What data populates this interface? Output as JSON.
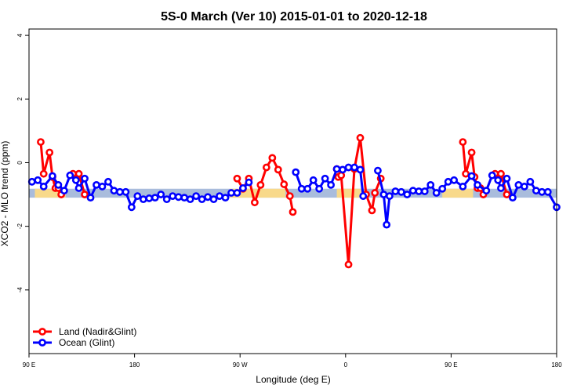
{
  "chart_data": {
    "type": "line",
    "title": "5S-0 March (Ver 10)   2015-01-01 to 2020-12-18",
    "xlabel": "Longitude (deg E)",
    "ylabel": "XCO2 - MLO trend (ppm)",
    "xlim": [
      90,
      450
    ],
    "ylim": [
      -6,
      4.2
    ],
    "x_ticks": [
      {
        "value": 90,
        "label": "90 E"
      },
      {
        "value": 162,
        "label": "180"
      },
      {
        "value": 234,
        "label": "90 W"
      },
      {
        "value": 306,
        "label": "0"
      },
      {
        "value": 378,
        "label": "90 E"
      },
      {
        "value": 450,
        "label": "180"
      }
    ],
    "y_ticks": [
      -4,
      -2,
      0,
      2,
      4
    ],
    "bands": [
      {
        "name": "blue-band",
        "color": "#a9bcdc",
        "y_min": -1.1,
        "y_max": -0.82
      },
      {
        "name": "orange-band",
        "color": "#f8d98a",
        "y_min": -1.1,
        "y_max": -0.82,
        "x_ranges": [
          [
            94,
            115
          ],
          [
            227,
            265
          ],
          [
            300,
            318
          ],
          [
            372,
            393
          ]
        ]
      }
    ],
    "series": [
      {
        "name": "Land (Nadir&Glint)",
        "color": "#ff0000",
        "segments": [
          [
            [
              98,
              0.65
            ],
            [
              100,
              -0.35
            ],
            [
              104,
              0.32
            ],
            [
              106,
              -0.45
            ],
            [
              108,
              -0.8
            ],
            [
              110,
              -0.8
            ],
            [
              112,
              -1.0
            ]
          ],
          [
            [
              120,
              -0.35
            ],
            [
              124,
              -0.35
            ],
            [
              128,
              -1.0
            ]
          ],
          [
            [
              232,
              -0.5
            ],
            [
              236,
              -0.82
            ],
            [
              240,
              -0.5
            ],
            [
              244,
              -1.25
            ],
            [
              248,
              -0.7
            ],
            [
              252,
              -0.15
            ],
            [
              256,
              0.15
            ],
            [
              260,
              -0.22
            ],
            [
              264,
              -0.68
            ],
            [
              268,
              -1.05
            ],
            [
              270,
              -1.55
            ]
          ],
          [
            [
              300,
              -0.2
            ],
            [
              300,
              -0.2
            ]
          ],
          [
            [
              301,
              -0.45
            ],
            [
              303,
              -0.4
            ],
            [
              308,
              -3.2
            ],
            [
              312,
              -0.2
            ],
            [
              316,
              0.78
            ],
            [
              320,
              -1.0
            ],
            [
              324,
              -1.5
            ],
            [
              326,
              -0.95
            ],
            [
              330,
              -0.5
            ]
          ],
          [
            [
              386,
              0.65
            ],
            [
              388,
              -0.35
            ],
            [
              392,
              0.32
            ],
            [
              394,
              -0.45
            ],
            [
              396,
              -0.8
            ],
            [
              398,
              -0.8
            ],
            [
              400,
              -1.0
            ]
          ],
          [
            [
              408,
              -0.35
            ],
            [
              412,
              -0.35
            ],
            [
              416,
              -1.0
            ]
          ]
        ]
      },
      {
        "name": "Ocean (Glint)",
        "color": "#0000ff",
        "segments": [
          [
            [
              92,
              -0.6
            ],
            [
              96,
              -0.55
            ],
            [
              100,
              -0.75
            ],
            [
              106,
              -0.42
            ],
            [
              110,
              -0.7
            ],
            [
              114,
              -0.88
            ],
            [
              118,
              -0.4
            ],
            [
              122,
              -0.55
            ],
            [
              124,
              -0.8
            ],
            [
              128,
              -0.5
            ],
            [
              132,
              -1.1
            ],
            [
              136,
              -0.7
            ],
            [
              140,
              -0.75
            ],
            [
              144,
              -0.6
            ],
            [
              148,
              -0.88
            ],
            [
              152,
              -0.92
            ],
            [
              156,
              -0.92
            ],
            [
              160,
              -1.4
            ],
            [
              164,
              -1.05
            ],
            [
              168,
              -1.15
            ],
            [
              172,
              -1.12
            ],
            [
              176,
              -1.1
            ],
            [
              180,
              -1.0
            ],
            [
              184,
              -1.15
            ],
            [
              188,
              -1.05
            ],
            [
              192,
              -1.08
            ],
            [
              196,
              -1.1
            ],
            [
              200,
              -1.15
            ],
            [
              204,
              -1.05
            ],
            [
              208,
              -1.15
            ],
            [
              212,
              -1.08
            ],
            [
              216,
              -1.15
            ],
            [
              220,
              -1.05
            ],
            [
              224,
              -1.1
            ],
            [
              228,
              -0.95
            ],
            [
              232,
              -0.95
            ],
            [
              236,
              -0.8
            ],
            [
              240,
              -0.62
            ]
          ],
          [
            [
              272,
              -0.3
            ],
            [
              276,
              -0.82
            ],
            [
              280,
              -0.82
            ],
            [
              284,
              -0.55
            ],
            [
              288,
              -0.82
            ],
            [
              292,
              -0.5
            ],
            [
              296,
              -0.7
            ],
            [
              300,
              -0.2
            ],
            [
              304,
              -0.22
            ],
            [
              308,
              -0.15
            ],
            [
              312,
              -0.15
            ]
          ],
          [
            [
              316,
              -0.22
            ],
            [
              318,
              -1.05
            ]
          ],
          [
            [
              328,
              -0.25
            ],
            [
              332,
              -1.0
            ],
            [
              334,
              -1.95
            ],
            [
              336,
              -1.05
            ],
            [
              340,
              -0.9
            ],
            [
              344,
              -0.92
            ],
            [
              348,
              -1.0
            ],
            [
              352,
              -0.88
            ],
            [
              356,
              -0.9
            ],
            [
              360,
              -0.9
            ],
            [
              364,
              -0.7
            ],
            [
              368,
              -0.95
            ],
            [
              372,
              -0.82
            ],
            [
              376,
              -0.6
            ],
            [
              380,
              -0.55
            ],
            [
              386,
              -0.75
            ],
            [
              392,
              -0.42
            ],
            [
              396,
              -0.7
            ],
            [
              402,
              -0.88
            ],
            [
              406,
              -0.4
            ],
            [
              410,
              -0.55
            ],
            [
              412,
              -0.8
            ],
            [
              416,
              -0.5
            ],
            [
              420,
              -1.1
            ],
            [
              424,
              -0.7
            ],
            [
              428,
              -0.75
            ],
            [
              432,
              -0.6
            ],
            [
              436,
              -0.88
            ],
            [
              440,
              -0.92
            ],
            [
              444,
              -0.92
            ],
            [
              450,
              -1.4
            ]
          ]
        ]
      }
    ],
    "legend": {
      "position": "bottom-left"
    }
  }
}
